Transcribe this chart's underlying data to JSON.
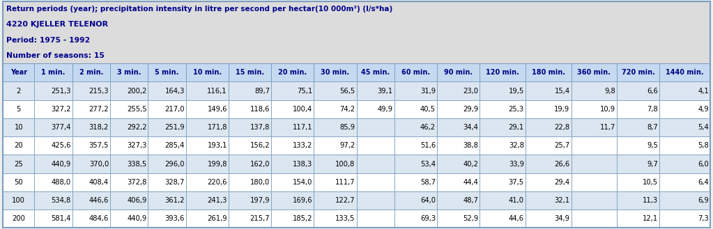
{
  "title_line1": "Return periods (year); precipitation intensity in litre per second per hectar(10 000m²) (l/s*ha)",
  "title_line2": "4220 KJELLER TELENOR",
  "title_line3": "Period: 1975 - 1992",
  "title_line4": "Number of seasons: 15",
  "headers": [
    "Year",
    "1 min.",
    "2 min.",
    "3 min.",
    "5 min.",
    "10 min.",
    "15 min.",
    "20 min.",
    "30 min.",
    "45 min.",
    "60 min.",
    "90 min.",
    "120 min.",
    "180 min.",
    "360 min.",
    "720 min.",
    "1440 min."
  ],
  "rows": [
    [
      "2",
      "251,3",
      "215,3",
      "200,2",
      "164,3",
      "116,1",
      "89,7",
      "75,1",
      "56,5",
      "39,1",
      "31,9",
      "23,0",
      "19,5",
      "15,4",
      "9,8",
      "6,6",
      "4,1"
    ],
    [
      "5",
      "327,2",
      "277,2",
      "255,5",
      "217,0",
      "149,6",
      "118,6",
      "100,4",
      "74,2",
      "49,9",
      "40,5",
      "29,9",
      "25,3",
      "19,9",
      "10,9",
      "7,8",
      "4,9"
    ],
    [
      "10",
      "377,4",
      "318,2",
      "292,2",
      "251,9",
      "171,8",
      "137,8",
      "117,1",
      "85,9",
      "",
      "46,2",
      "34,4",
      "29,1",
      "22,8",
      "11,7",
      "8,7",
      "5,4"
    ],
    [
      "20",
      "425,6",
      "357,5",
      "327,3",
      "285,4",
      "193,1",
      "156,2",
      "133,2",
      "97,2",
      "",
      "51,6",
      "38,8",
      "32,8",
      "25,7",
      "",
      "9,5",
      "5,8"
    ],
    [
      "25",
      "440,9",
      "370,0",
      "338,5",
      "296,0",
      "199,8",
      "162,0",
      "138,3",
      "100,8",
      "",
      "53,4",
      "40,2",
      "33,9",
      "26,6",
      "",
      "9,7",
      "6,0"
    ],
    [
      "50",
      "488,0",
      "408,4",
      "372,8",
      "328,7",
      "220,6",
      "180,0",
      "154,0",
      "111,7",
      "",
      "58,7",
      "44,4",
      "37,5",
      "29,4",
      "",
      "10,5",
      "6,4"
    ],
    [
      "100",
      "534,8",
      "446,6",
      "406,9",
      "361,2",
      "241,3",
      "197,9",
      "169,6",
      "122,7",
      "",
      "64,0",
      "48,7",
      "41,0",
      "32,1",
      "",
      "11,3",
      "6,9"
    ],
    [
      "200",
      "581,4",
      "484,6",
      "440,9",
      "393,6",
      "261,9",
      "215,7",
      "185,2",
      "133,5",
      "",
      "69,3",
      "52,9",
      "44,6",
      "34,9",
      "",
      "12,1",
      "7,3"
    ]
  ],
  "header_bg": "#c5d9f1",
  "row_bg_odd": "#dce6f1",
  "row_bg_even": "#ffffff",
  "title_bg": "#e0e0e0",
  "border_color": "#4f6228",
  "header_border": "#4a6fa5",
  "text_color": "#000080",
  "title_text_color": "#00008b",
  "col_widths_rel": [
    2.0,
    2.4,
    2.4,
    2.4,
    2.4,
    2.7,
    2.7,
    2.7,
    2.7,
    2.4,
    2.7,
    2.7,
    2.9,
    2.9,
    2.9,
    2.7,
    3.2
  ]
}
